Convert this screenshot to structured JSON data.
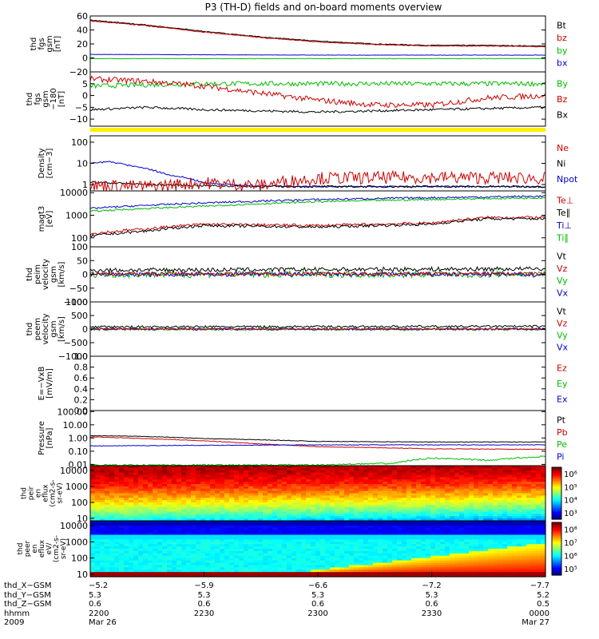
{
  "title": "P3 (TH-D) fields and on-board moments overview",
  "chart_data": {
    "type": "line",
    "panels": [
      {
        "ylabel": [
          "thd",
          "fgs",
          "gsm",
          "[nT]"
        ],
        "ylim": [
          -20,
          60
        ],
        "ticks": [
          {
            "v": -20,
            "t": "−20"
          },
          {
            "v": 0,
            "t": "0"
          },
          {
            "v": 20,
            "t": "20"
          },
          {
            "v": 40,
            "t": "40"
          },
          {
            "v": 60,
            "t": "60"
          }
        ],
        "scale": "linear",
        "legend": [
          {
            "name": "Bt",
            "color": "#000000"
          },
          {
            "name": "bz",
            "color": "#cc0000"
          },
          {
            "name": "by",
            "color": "#00bb00"
          },
          {
            "name": "bx",
            "color": "#0000cc"
          }
        ],
        "series": [
          {
            "name": "Bt",
            "color": "#000000",
            "x": [
              2200,
              2215,
              2230,
              2245,
              2300,
              2315,
              2330,
              2345,
              2400
            ],
            "y": [
              54,
              47,
              38,
              30,
              24,
              20,
              18,
              18,
              17
            ],
            "noise": 0.5
          },
          {
            "name": "bz",
            "color": "#cc0000",
            "x": [
              2200,
              2215,
              2230,
              2245,
              2300,
              2315,
              2330,
              2345,
              2400
            ],
            "y": [
              53,
              46,
              37,
              29,
              23,
              19,
              17,
              17,
              16
            ],
            "noise": 0.5
          },
          {
            "name": "by",
            "color": "#00bb00",
            "x": [
              2200,
              2300,
              2400
            ],
            "y": [
              -1,
              -1,
              -1
            ],
            "noise": 0.3
          },
          {
            "name": "bx",
            "color": "#0000cc",
            "x": [
              2200,
              2300,
              2400
            ],
            "y": [
              5,
              4,
              4
            ],
            "noise": 0.2
          }
        ]
      },
      {
        "ylabel": [
          "thd",
          "fgs",
          "gsm",
          "−180",
          "[nT]"
        ],
        "ylim": [
          -13,
          10
        ],
        "ticks": [
          {
            "v": -10,
            "t": "−10"
          },
          {
            "v": -5,
            "t": "−5"
          },
          {
            "v": 0,
            "t": "0"
          },
          {
            "v": 5,
            "t": "5"
          }
        ],
        "scale": "linear",
        "legend": [
          {
            "name": "By",
            "color": "#00bb00"
          },
          {
            "name": "Bz",
            "color": "#cc0000"
          },
          {
            "name": "Bx",
            "color": "#000000"
          }
        ],
        "series": [
          {
            "name": "By",
            "color": "#00bb00",
            "x": [
              2200,
              2230,
              2300,
              2330,
              2400
            ],
            "y": [
              4,
              5,
              5,
              5,
              5
            ],
            "noise": 1
          },
          {
            "name": "Bz",
            "color": "#cc0000",
            "x": [
              2200,
              2215,
              2230,
              2245,
              2300,
              2315,
              2330,
              2345,
              2400
            ],
            "y": [
              7,
              6,
              4,
              1,
              -2,
              -4,
              -4,
              -1,
              0
            ],
            "noise": 1.2
          },
          {
            "name": "Bx",
            "color": "#000000",
            "x": [
              2200,
              2215,
              2230,
              2300,
              2330,
              2400
            ],
            "y": [
              -6,
              -5,
              -6,
              -7,
              -6,
              -5
            ],
            "noise": 0.5
          }
        ]
      },
      {
        "ylabel": [
          "Density",
          "[cm−3]"
        ],
        "ylim": [
          0.5,
          200
        ],
        "ticks": [
          {
            "v": 1,
            "t": "1"
          },
          {
            "v": 10,
            "t": "10"
          },
          {
            "v": 100,
            "t": "100"
          }
        ],
        "scale": "log",
        "legend": [
          {
            "name": "Ne",
            "color": "#cc0000"
          },
          {
            "name": "Ni",
            "color": "#000000"
          },
          {
            "name": "Npot",
            "color": "#0000cc"
          }
        ],
        "series": [
          {
            "name": "Npot",
            "color": "#0000cc",
            "x": [
              2200,
              2205,
              2210,
              2220,
              2230,
              2240,
              2300,
              2400
            ],
            "y": [
              10,
              12,
              8,
              3,
              1.2,
              0.9,
              0.8,
              0.8
            ],
            "noise": 0.03
          },
          {
            "name": "Ni",
            "color": "#000000",
            "x": [
              2200,
              2215,
              2230,
              2245,
              2300,
              2400
            ],
            "y": [
              1.3,
              1.0,
              0.9,
              0.8,
              0.8,
              0.8
            ],
            "noise": 0.05
          },
          {
            "name": "Ne",
            "color": "#cc0000",
            "x": [
              2200,
              2215,
              2230,
              2245,
              2300,
              2330,
              2400
            ],
            "y": [
              0.9,
              0.8,
              1.2,
              0.9,
              2,
              2.2,
              2
            ],
            "noise": 0.3
          }
        ]
      },
      {
        "ylabel": [
          "magt3",
          "[eV]"
        ],
        "ylim": [
          40,
          12000
        ],
        "ticks": [
          {
            "v": 100,
            "t": "100"
          },
          {
            "v": 1000,
            "t": "1000"
          },
          {
            "v": 10000,
            "t": "10000"
          }
        ],
        "scale": "log",
        "legend": [
          {
            "name": "Te⊥",
            "color": "#cc0000"
          },
          {
            "name": "Te∥",
            "color": "#000000"
          },
          {
            "name": "Ti⊥",
            "color": "#0000cc"
          },
          {
            "name": "Ti∥",
            "color": "#00bb00"
          }
        ],
        "series": [
          {
            "name": "Ti⊥",
            "color": "#0000cc",
            "x": [
              2200,
              2230,
              2300,
              2330,
              2400
            ],
            "y": [
              2000,
              3500,
              5000,
              6000,
              7000
            ],
            "noise": 0.04
          },
          {
            "name": "Ti∥",
            "color": "#00bb00",
            "x": [
              2200,
              2230,
              2300,
              2330,
              2400
            ],
            "y": [
              1500,
              2500,
              4000,
              5000,
              6000
            ],
            "noise": 0.04
          },
          {
            "name": "Te⊥",
            "color": "#cc0000",
            "x": [
              2200,
              2215,
              2230,
              2300,
              2330,
              2345,
              2400
            ],
            "y": [
              150,
              250,
              400,
              350,
              450,
              800,
              800
            ],
            "noise": 0.06
          },
          {
            "name": "Te∥",
            "color": "#000000",
            "x": [
              2200,
              2215,
              2230,
              2300,
              2330,
              2345,
              2400
            ],
            "y": [
              120,
              200,
              350,
              300,
              400,
              700,
              700
            ],
            "noise": 0.06
          }
        ]
      },
      {
        "ylabel": [
          "thd",
          "peim",
          "velocity",
          "gsm",
          "[km/s]"
        ],
        "ylim": [
          -100,
          100
        ],
        "ticks": [
          {
            "v": -100,
            "t": "−100"
          },
          {
            "v": -50,
            "t": "−50"
          },
          {
            "v": 0,
            "t": "0"
          },
          {
            "v": 50,
            "t": "50"
          },
          {
            "v": 100,
            "t": "100"
          }
        ],
        "scale": "linear",
        "legend": [
          {
            "name": "Vt",
            "color": "#000000"
          },
          {
            "name": "Vz",
            "color": "#cc0000"
          },
          {
            "name": "Vy",
            "color": "#00bb00"
          },
          {
            "name": "Vx",
            "color": "#0000cc"
          }
        ],
        "series": [
          {
            "name": "Vy",
            "color": "#00bb00",
            "x": [
              2200,
              2400
            ],
            "y": [
              0,
              0
            ],
            "noise": 12
          },
          {
            "name": "Vx",
            "color": "#0000cc",
            "x": [
              2200,
              2400
            ],
            "y": [
              0,
              0
            ],
            "noise": 8
          },
          {
            "name": "Vz",
            "color": "#cc0000",
            "x": [
              2200,
              2400
            ],
            "y": [
              2,
              2
            ],
            "noise": 6
          },
          {
            "name": "Vt",
            "color": "#000000",
            "x": [
              2200,
              2400
            ],
            "y": [
              15,
              20
            ],
            "noise": 8
          }
        ]
      },
      {
        "ylabel": [
          "thd",
          "peem",
          "velocity",
          "gsm",
          "[km/s]"
        ],
        "ylim": [
          -1000,
          1000
        ],
        "ticks": [
          {
            "v": -1000,
            "t": "−1000"
          },
          {
            "v": -500,
            "t": "−500"
          },
          {
            "v": 0,
            "t": "0"
          },
          {
            "v": 500,
            "t": "500"
          },
          {
            "v": 1000,
            "t": "1000"
          }
        ],
        "scale": "linear",
        "legend": [
          {
            "name": "Vt",
            "color": "#000000"
          },
          {
            "name": "Vz",
            "color": "#cc0000"
          },
          {
            "name": "Vy",
            "color": "#00bb00"
          },
          {
            "name": "Vx",
            "color": "#0000cc"
          }
        ],
        "series": [
          {
            "name": "Vy",
            "color": "#00bb00",
            "x": [
              2200,
              2400
            ],
            "y": [
              0,
              0
            ],
            "noise": 50
          },
          {
            "name": "Vx",
            "color": "#0000cc",
            "x": [
              2200,
              2400
            ],
            "y": [
              0,
              0
            ],
            "noise": 40
          },
          {
            "name": "Vz",
            "color": "#cc0000",
            "x": [
              2200,
              2400
            ],
            "y": [
              0,
              0
            ],
            "noise": 30
          },
          {
            "name": "Vt",
            "color": "#000000",
            "x": [
              2200,
              2400
            ],
            "y": [
              80,
              100
            ],
            "noise": 40
          }
        ]
      },
      {
        "ylabel": [
          "E=−VxB",
          "[mV/m]"
        ],
        "ylim": [
          0,
          1
        ],
        "ticks": [
          {
            "v": 0,
            "t": "0.0"
          },
          {
            "v": 0.2,
            "t": "0.2"
          },
          {
            "v": 0.4,
            "t": "0.4"
          },
          {
            "v": 0.6,
            "t": "0.6"
          },
          {
            "v": 0.8,
            "t": "0.8"
          },
          {
            "v": 1,
            "t": "1.0"
          }
        ],
        "scale": "linear",
        "legend": [
          {
            "name": "Ez",
            "color": "#cc0000"
          },
          {
            "name": "Ey",
            "color": "#00bb00"
          },
          {
            "name": "Ex",
            "color": "#0000cc"
          }
        ],
        "series": []
      },
      {
        "ylabel": [
          "Pressure",
          "[nPa]"
        ],
        "ylim": [
          0.008,
          120
        ],
        "ticks": [
          {
            "v": 0.01,
            "t": "0.01"
          },
          {
            "v": 0.1,
            "t": "0.10"
          },
          {
            "v": 1,
            "t": "1.00"
          },
          {
            "v": 10,
            "t": "10.00"
          },
          {
            "v": 100,
            "t": "100.00"
          }
        ],
        "scale": "log",
        "legend": [
          {
            "name": "Pt",
            "color": "#000000"
          },
          {
            "name": "Pb",
            "color": "#cc0000"
          },
          {
            "name": "Pe",
            "color": "#00bb00"
          },
          {
            "name": "Pi",
            "color": "#0000cc"
          }
        ],
        "series": [
          {
            "name": "Pt",
            "color": "#000000",
            "x": [
              2200,
              2215,
              2230,
              2300,
              2330,
              2400
            ],
            "y": [
              1.5,
              1.3,
              0.9,
              0.55,
              0.5,
              0.5
            ],
            "noise": 0.02
          },
          {
            "name": "Pb",
            "color": "#cc0000",
            "x": [
              2200,
              2215,
              2230,
              2245,
              2300,
              2330,
              2400
            ],
            "y": [
              1.2,
              0.9,
              0.6,
              0.35,
              0.22,
              0.15,
              0.14
            ],
            "noise": 0.02
          },
          {
            "name": "Pi",
            "color": "#0000cc",
            "x": [
              2200,
              2230,
              2300,
              2400
            ],
            "y": [
              0.25,
              0.28,
              0.3,
              0.3
            ],
            "noise": 0.02
          },
          {
            "name": "Pe",
            "color": "#00bb00",
            "x": [
              2200,
              2300,
              2320,
              2330,
              2345,
              2400
            ],
            "y": [
              0.009,
              0.009,
              0.012,
              0.03,
              0.02,
              0.04
            ],
            "noise": 0.05
          }
        ]
      }
    ],
    "spectrograms": [
      {
        "ylabel": [
          "thd",
          "peir",
          "en",
          "eflux",
          "(cm2-s-",
          "sr-eV)"
        ],
        "ylim": [
          7,
          20000
        ],
        "ticks": [
          {
            "v": 10,
            "t": "10"
          },
          {
            "v": 100,
            "t": "100"
          },
          {
            "v": 1000,
            "t": "1000"
          },
          {
            "v": 10000,
            "t": "10000"
          }
        ],
        "colorbar": {
          "min": 1000,
          "max": 1000000,
          "ticks": [
            "10³",
            "10⁴",
            "10⁵",
            "10⁶"
          ]
        }
      },
      {
        "ylabel": [
          "thd",
          "peer",
          "en",
          "eflux",
          "eV/",
          "(cm2-s-",
          "sr-eV)"
        ],
        "ylim": [
          7,
          20000
        ],
        "ticks": [
          {
            "v": 10,
            "t": "10"
          },
          {
            "v": 100,
            "t": "100"
          },
          {
            "v": 1000,
            "t": "1000"
          },
          {
            "v": 10000,
            "t": "10000"
          }
        ],
        "colorbar": {
          "min": 100000,
          "max": 100000000,
          "ticks": [
            "10⁵",
            "10⁶",
            "10⁷",
            "10⁸"
          ]
        }
      }
    ],
    "xaxis": {
      "range": [
        2200,
        2400
      ],
      "tick_positions": [
        2200,
        2230,
        2300,
        2330,
        2400
      ],
      "rows": [
        {
          "label": "thd_X−GSM",
          "values": [
            "−5.2",
            "−5.9",
            "−6.6",
            "−7.2",
            "−7.7"
          ]
        },
        {
          "label": "thd_Y−GSM",
          "values": [
            "5.3",
            "5.3",
            "5.3",
            "5.3",
            "5.2"
          ]
        },
        {
          "label": "thd_Z−GSM",
          "values": [
            "0.6",
            "0.6",
            "0.6",
            "0.6",
            "0.5"
          ]
        },
        {
          "label": "hhmm",
          "values": [
            "2200",
            "2230",
            "2300",
            "2330",
            "0000"
          ]
        },
        {
          "label": "2009",
          "values": [
            "Mar 26",
            "",
            "",
            "",
            "Mar 27"
          ]
        }
      ]
    }
  }
}
